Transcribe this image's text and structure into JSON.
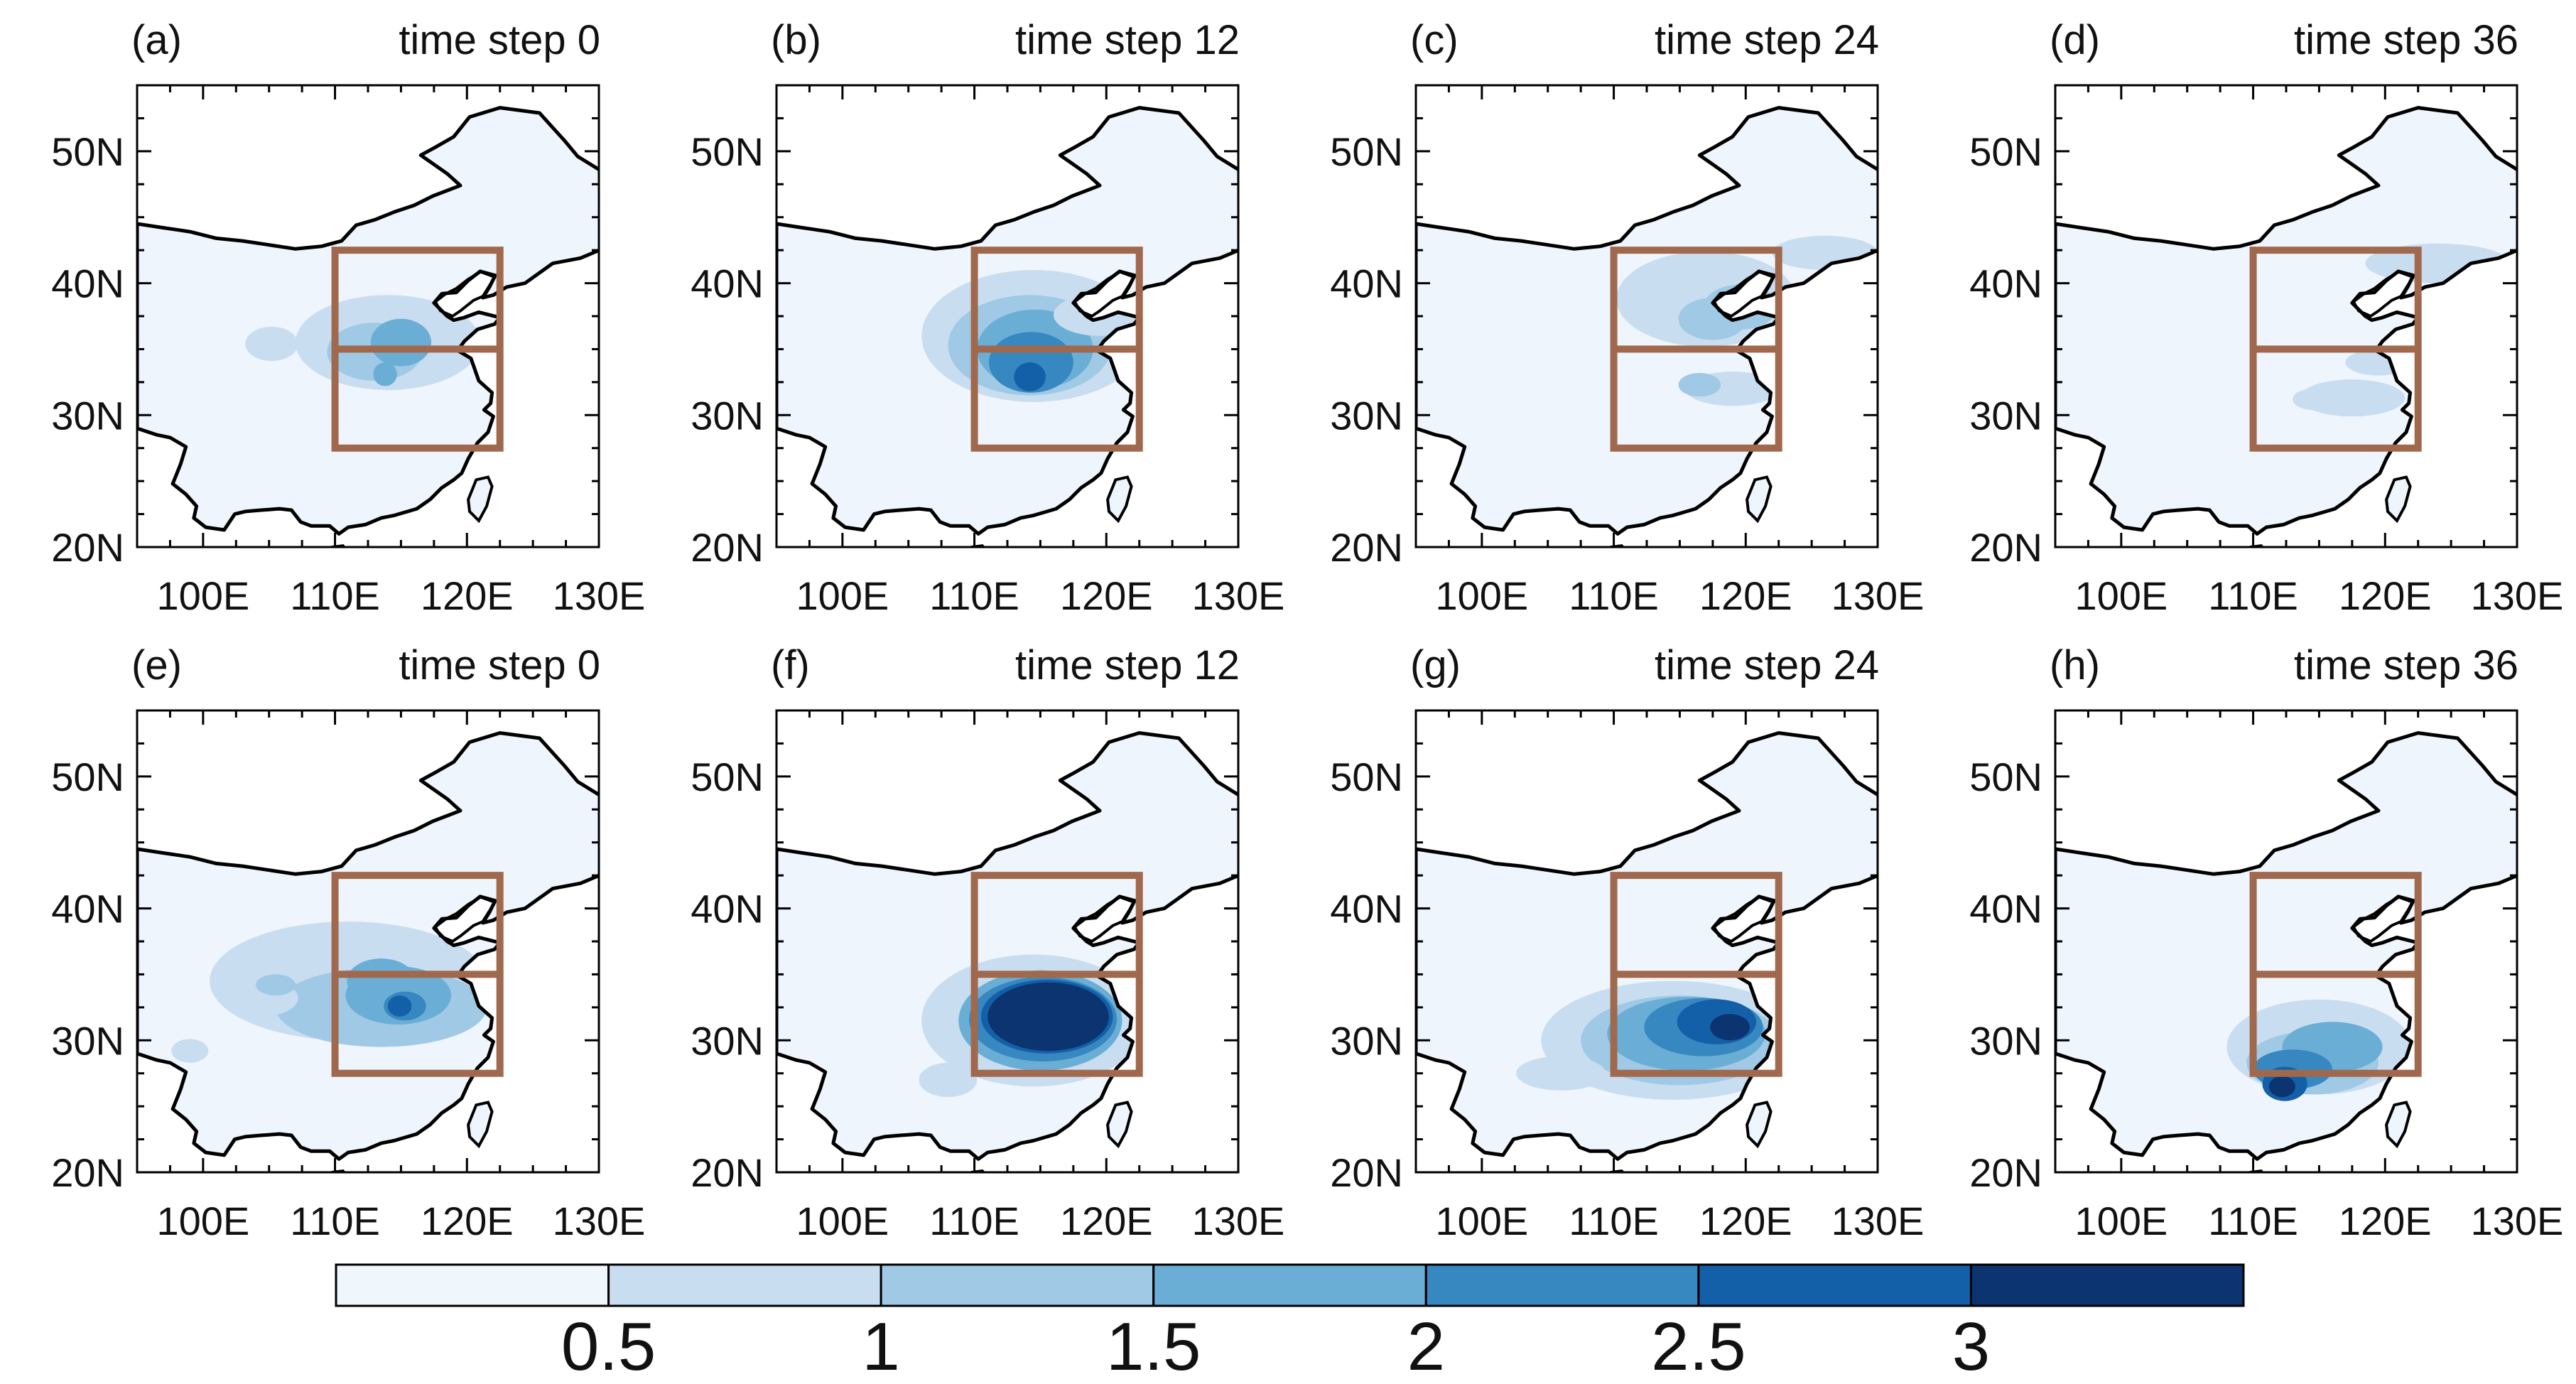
{
  "figure": {
    "panels": [
      {
        "label": "(a)",
        "title": "time step 0"
      },
      {
        "label": "(b)",
        "title": "time step 12"
      },
      {
        "label": "(c)",
        "title": "time step 24"
      },
      {
        "label": "(d)",
        "title": "time step 36"
      },
      {
        "label": "(e)",
        "title": "time step 0"
      },
      {
        "label": "(f)",
        "title": "time step 12"
      },
      {
        "label": "(g)",
        "title": "time step 24"
      },
      {
        "label": "(h)",
        "title": "time step 36"
      }
    ],
    "lat_ticks": [
      "50N",
      "40N",
      "30N",
      "20N"
    ],
    "lon_ticks": [
      "100E",
      "110E",
      "120E",
      "130E"
    ],
    "colorbar": {
      "labels": [
        "0.5",
        "1",
        "1.5",
        "2",
        "2.5",
        "3"
      ],
      "colors": [
        "#eff6fc",
        "#c9ddf0",
        "#9fc9e4",
        "#6aaed6",
        "#3787c0",
        "#1460a8",
        "#0b3470"
      ]
    },
    "colors": {
      "box": "#a0694e",
      "land": "#eef5fc",
      "coast": "#000000"
    }
  }
}
